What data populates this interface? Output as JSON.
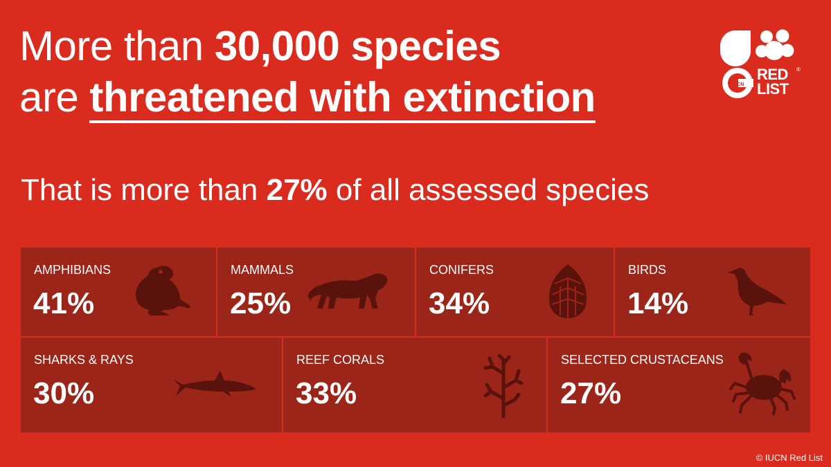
{
  "headline": {
    "line1_prefix": "More than ",
    "line1_bold": "30,000 species",
    "line2_prefix": "are ",
    "line2_underlined": "threatened with extinction"
  },
  "subline": {
    "prefix": "That is more than ",
    "bold": "27%",
    "suffix": " of all assessed species"
  },
  "logo": {
    "text_line1": "RED",
    "text_line2": "LIST",
    "badge_text": "IUCN",
    "registered": "®"
  },
  "categories": [
    {
      "label": "AMPHIBIANS",
      "percent": "41%",
      "icon": "frog-icon"
    },
    {
      "label": "MAMMALS",
      "percent": "25%",
      "icon": "tiger-icon"
    },
    {
      "label": "CONIFERS",
      "percent": "34%",
      "icon": "pine-cone-icon"
    },
    {
      "label": "BIRDS",
      "percent": "14%",
      "icon": "bird-icon"
    },
    {
      "label": "SHARKS & RAYS",
      "percent": "30%",
      "icon": "shark-icon"
    },
    {
      "label": "REEF CORALS",
      "percent": "33%",
      "icon": "coral-icon"
    },
    {
      "label": "SELECTED CRUSTACEANS",
      "percent": "27%",
      "icon": "crab-icon"
    }
  ],
  "colors": {
    "background": "#d92b1e",
    "tile": "#9b2518",
    "icon": "#5a120c"
  },
  "copyright": "© IUCN Red List"
}
